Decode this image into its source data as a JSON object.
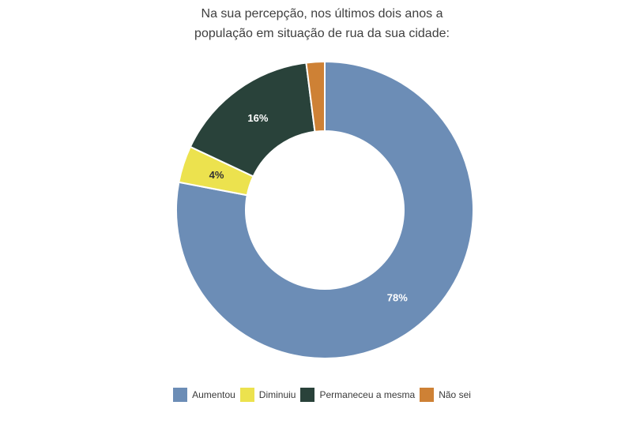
{
  "title_lines": {
    "line1": "Na sua percepção, nos últimos dois anos a",
    "line2": "população em situação de rua da sua cidade:"
  },
  "chart_data": {
    "type": "pie",
    "subtype": "donut",
    "title": "Na sua percepção, nos últimos dois anos a população em situação de rua da sua cidade:",
    "legend_position": "bottom",
    "start_angle_deg": 0,
    "direction": "clockwise",
    "inner_radius_ratio": 0.53,
    "slice_border_color": "#ffffff",
    "title_color": "#404040",
    "legend_text_color": "#3a3a3a",
    "slices": [
      {
        "label": "Aumentou",
        "value": 78,
        "color": "#6c8db6",
        "data_label": "78%",
        "data_label_color": "#ffffff",
        "data_label_visible": true
      },
      {
        "label": "Diminuiu",
        "value": 4,
        "color": "#ece24e",
        "data_label": "4%",
        "data_label_color": "#333333",
        "data_label_visible": true
      },
      {
        "label": "Permaneceu a mesma",
        "value": 16,
        "color": "#29423a",
        "data_label": "16%",
        "data_label_color": "#ffffff",
        "data_label_visible": true
      },
      {
        "label": "Não sei",
        "value": 2,
        "color": "#ce8135",
        "data_label": "",
        "data_label_color": "#ffffff",
        "data_label_visible": false
      }
    ]
  }
}
